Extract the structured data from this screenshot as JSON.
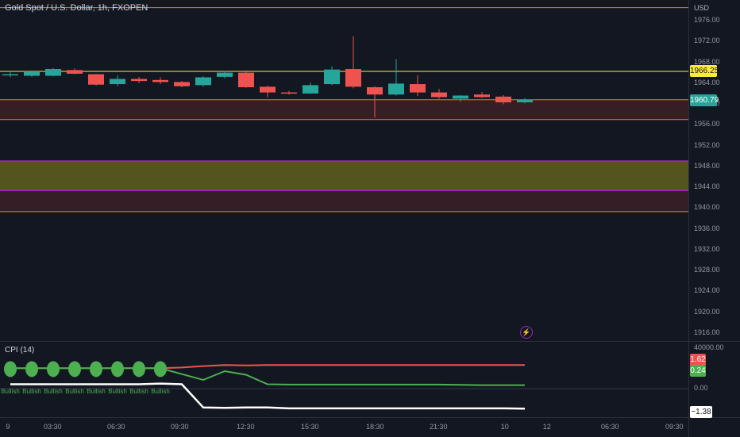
{
  "header": {
    "symbol_title": "Gold Spot / U.S. Dollar, 1h, FXOPEN",
    "currency": "USD"
  },
  "colors": {
    "background": "#131722",
    "bull": "#26a69a",
    "bear": "#ef5350",
    "resistance_line": "#f57c00",
    "current_line": "#ffeb3b",
    "zone_olive": "#6b6b1e",
    "zone_red": "#3a1f26",
    "zone_border_purple": "#9c27b0",
    "cpi_red": "#ef5350",
    "cpi_green": "#4caf50",
    "cpi_white": "#ffffff"
  },
  "price_axis": {
    "ticks": [
      "1976.00",
      "1972.00",
      "1968.00",
      "1964.00",
      "1960.00",
      "1956.00",
      "1952.00",
      "1948.00",
      "1944.00",
      "1940.00",
      "1936.00",
      "1932.00",
      "1928.00",
      "1924.00",
      "1920.00",
      "1916.00"
    ],
    "badge_alert": "1966.25",
    "badge_last": "1960.79"
  },
  "indicator": {
    "title": "CPI (14)",
    "axis_top": "40000.00",
    "axis_zero": "0.00",
    "badge_red": "1.62",
    "badge_green": "0.24",
    "badge_white": "−1.38",
    "dot_labels": [
      "Bullish",
      "Bullish",
      "Bullish",
      "Bullish",
      "Bullish",
      "Bullish",
      "Bullish",
      "Bullish"
    ]
  },
  "time_axis": {
    "labels": [
      "9",
      "03:30",
      "06:30",
      "09:30",
      "12:30",
      "15:30",
      "18:30",
      "21:30",
      "10",
      "12",
      "06:30",
      "09:30"
    ]
  },
  "icons": {
    "flash": "lightning-icon"
  },
  "chart_data": {
    "type": "candlestick",
    "title": "Gold Spot / U.S. Dollar, 1h, FXOPEN",
    "ylabel": "USD",
    "ylim": [
      1914,
      1978
    ],
    "levels": {
      "resistance_top": 1978.5,
      "alert_level": 1966.25,
      "zone_upper_top": 1960.8,
      "zone_upper_bottom": 1957.0,
      "zone_olive_top": 1949.0,
      "zone_olive_bottom": 1943.4,
      "zone_red_top": 1943.4,
      "zone_red_bottom": 1939.3
    },
    "candles": [
      {
        "o": 1965.6,
        "h": 1966.1,
        "l": 1965.1,
        "c": 1965.7
      },
      {
        "o": 1965.4,
        "h": 1966.2,
        "l": 1965.2,
        "c": 1966.1
      },
      {
        "o": 1965.4,
        "h": 1966.9,
        "l": 1965.3,
        "c": 1966.7
      },
      {
        "o": 1966.5,
        "h": 1966.8,
        "l": 1965.7,
        "c": 1965.8
      },
      {
        "o": 1965.7,
        "h": 1965.8,
        "l": 1963.5,
        "c": 1963.7
      },
      {
        "o": 1963.8,
        "h": 1965.5,
        "l": 1963.4,
        "c": 1964.8
      },
      {
        "o": 1964.8,
        "h": 1965.2,
        "l": 1964.0,
        "c": 1964.4
      },
      {
        "o": 1964.6,
        "h": 1965.1,
        "l": 1963.8,
        "c": 1964.2
      },
      {
        "o": 1964.2,
        "h": 1964.4,
        "l": 1963.2,
        "c": 1963.4
      },
      {
        "o": 1963.6,
        "h": 1965.3,
        "l": 1963.3,
        "c": 1965.1
      },
      {
        "o": 1965.2,
        "h": 1966.3,
        "l": 1964.9,
        "c": 1966.0
      },
      {
        "o": 1966.0,
        "h": 1966.2,
        "l": 1963.1,
        "c": 1963.2
      },
      {
        "o": 1963.3,
        "h": 1963.5,
        "l": 1961.3,
        "c": 1962.2
      },
      {
        "o": 1962.2,
        "h": 1962.5,
        "l": 1961.8,
        "c": 1962.0
      },
      {
        "o": 1962.0,
        "h": 1964.1,
        "l": 1961.9,
        "c": 1963.6
      },
      {
        "o": 1963.8,
        "h": 1967.2,
        "l": 1963.6,
        "c": 1966.6
      },
      {
        "o": 1966.7,
        "h": 1973.0,
        "l": 1963.0,
        "c": 1963.3
      },
      {
        "o": 1963.2,
        "h": 1963.4,
        "l": 1957.4,
        "c": 1961.8
      },
      {
        "o": 1961.8,
        "h": 1968.6,
        "l": 1961.6,
        "c": 1963.9
      },
      {
        "o": 1963.8,
        "h": 1965.5,
        "l": 1961.5,
        "c": 1962.2
      },
      {
        "o": 1962.2,
        "h": 1962.9,
        "l": 1961.0,
        "c": 1961.3
      },
      {
        "o": 1961.0,
        "h": 1961.7,
        "l": 1960.4,
        "c": 1961.6
      },
      {
        "o": 1961.8,
        "h": 1962.3,
        "l": 1961.1,
        "c": 1961.3
      },
      {
        "o": 1961.4,
        "h": 1961.7,
        "l": 1959.9,
        "c": 1960.3
      },
      {
        "o": 1960.3,
        "h": 1961.1,
        "l": 1960.1,
        "c": 1960.8
      }
    ],
    "cpi": {
      "series_red": [
        1.4,
        1.4,
        1.4,
        1.4,
        1.4,
        1.4,
        1.4,
        1.4,
        1.45,
        1.55,
        1.62,
        1.6,
        1.62,
        1.62,
        1.62,
        1.62,
        1.62,
        1.62,
        1.62,
        1.62,
        1.62,
        1.62,
        1.62,
        1.62,
        1.62
      ],
      "series_green": [
        1.4,
        1.4,
        1.4,
        1.4,
        1.4,
        1.4,
        1.4,
        1.4,
        1.0,
        0.6,
        1.2,
        0.95,
        0.3,
        0.28,
        0.28,
        0.28,
        0.28,
        0.28,
        0.28,
        0.28,
        0.28,
        0.26,
        0.24,
        0.24,
        0.24
      ],
      "series_white": [
        0.3,
        0.3,
        0.3,
        0.3,
        0.3,
        0.3,
        0.3,
        0.35,
        0.3,
        -1.3,
        -1.32,
        -1.3,
        -1.3,
        -1.36,
        -1.36,
        -1.36,
        -1.36,
        -1.36,
        -1.36,
        -1.36,
        -1.36,
        -1.36,
        -1.36,
        -1.36,
        -1.38
      ],
      "bullish_dots_count": 8
    }
  }
}
